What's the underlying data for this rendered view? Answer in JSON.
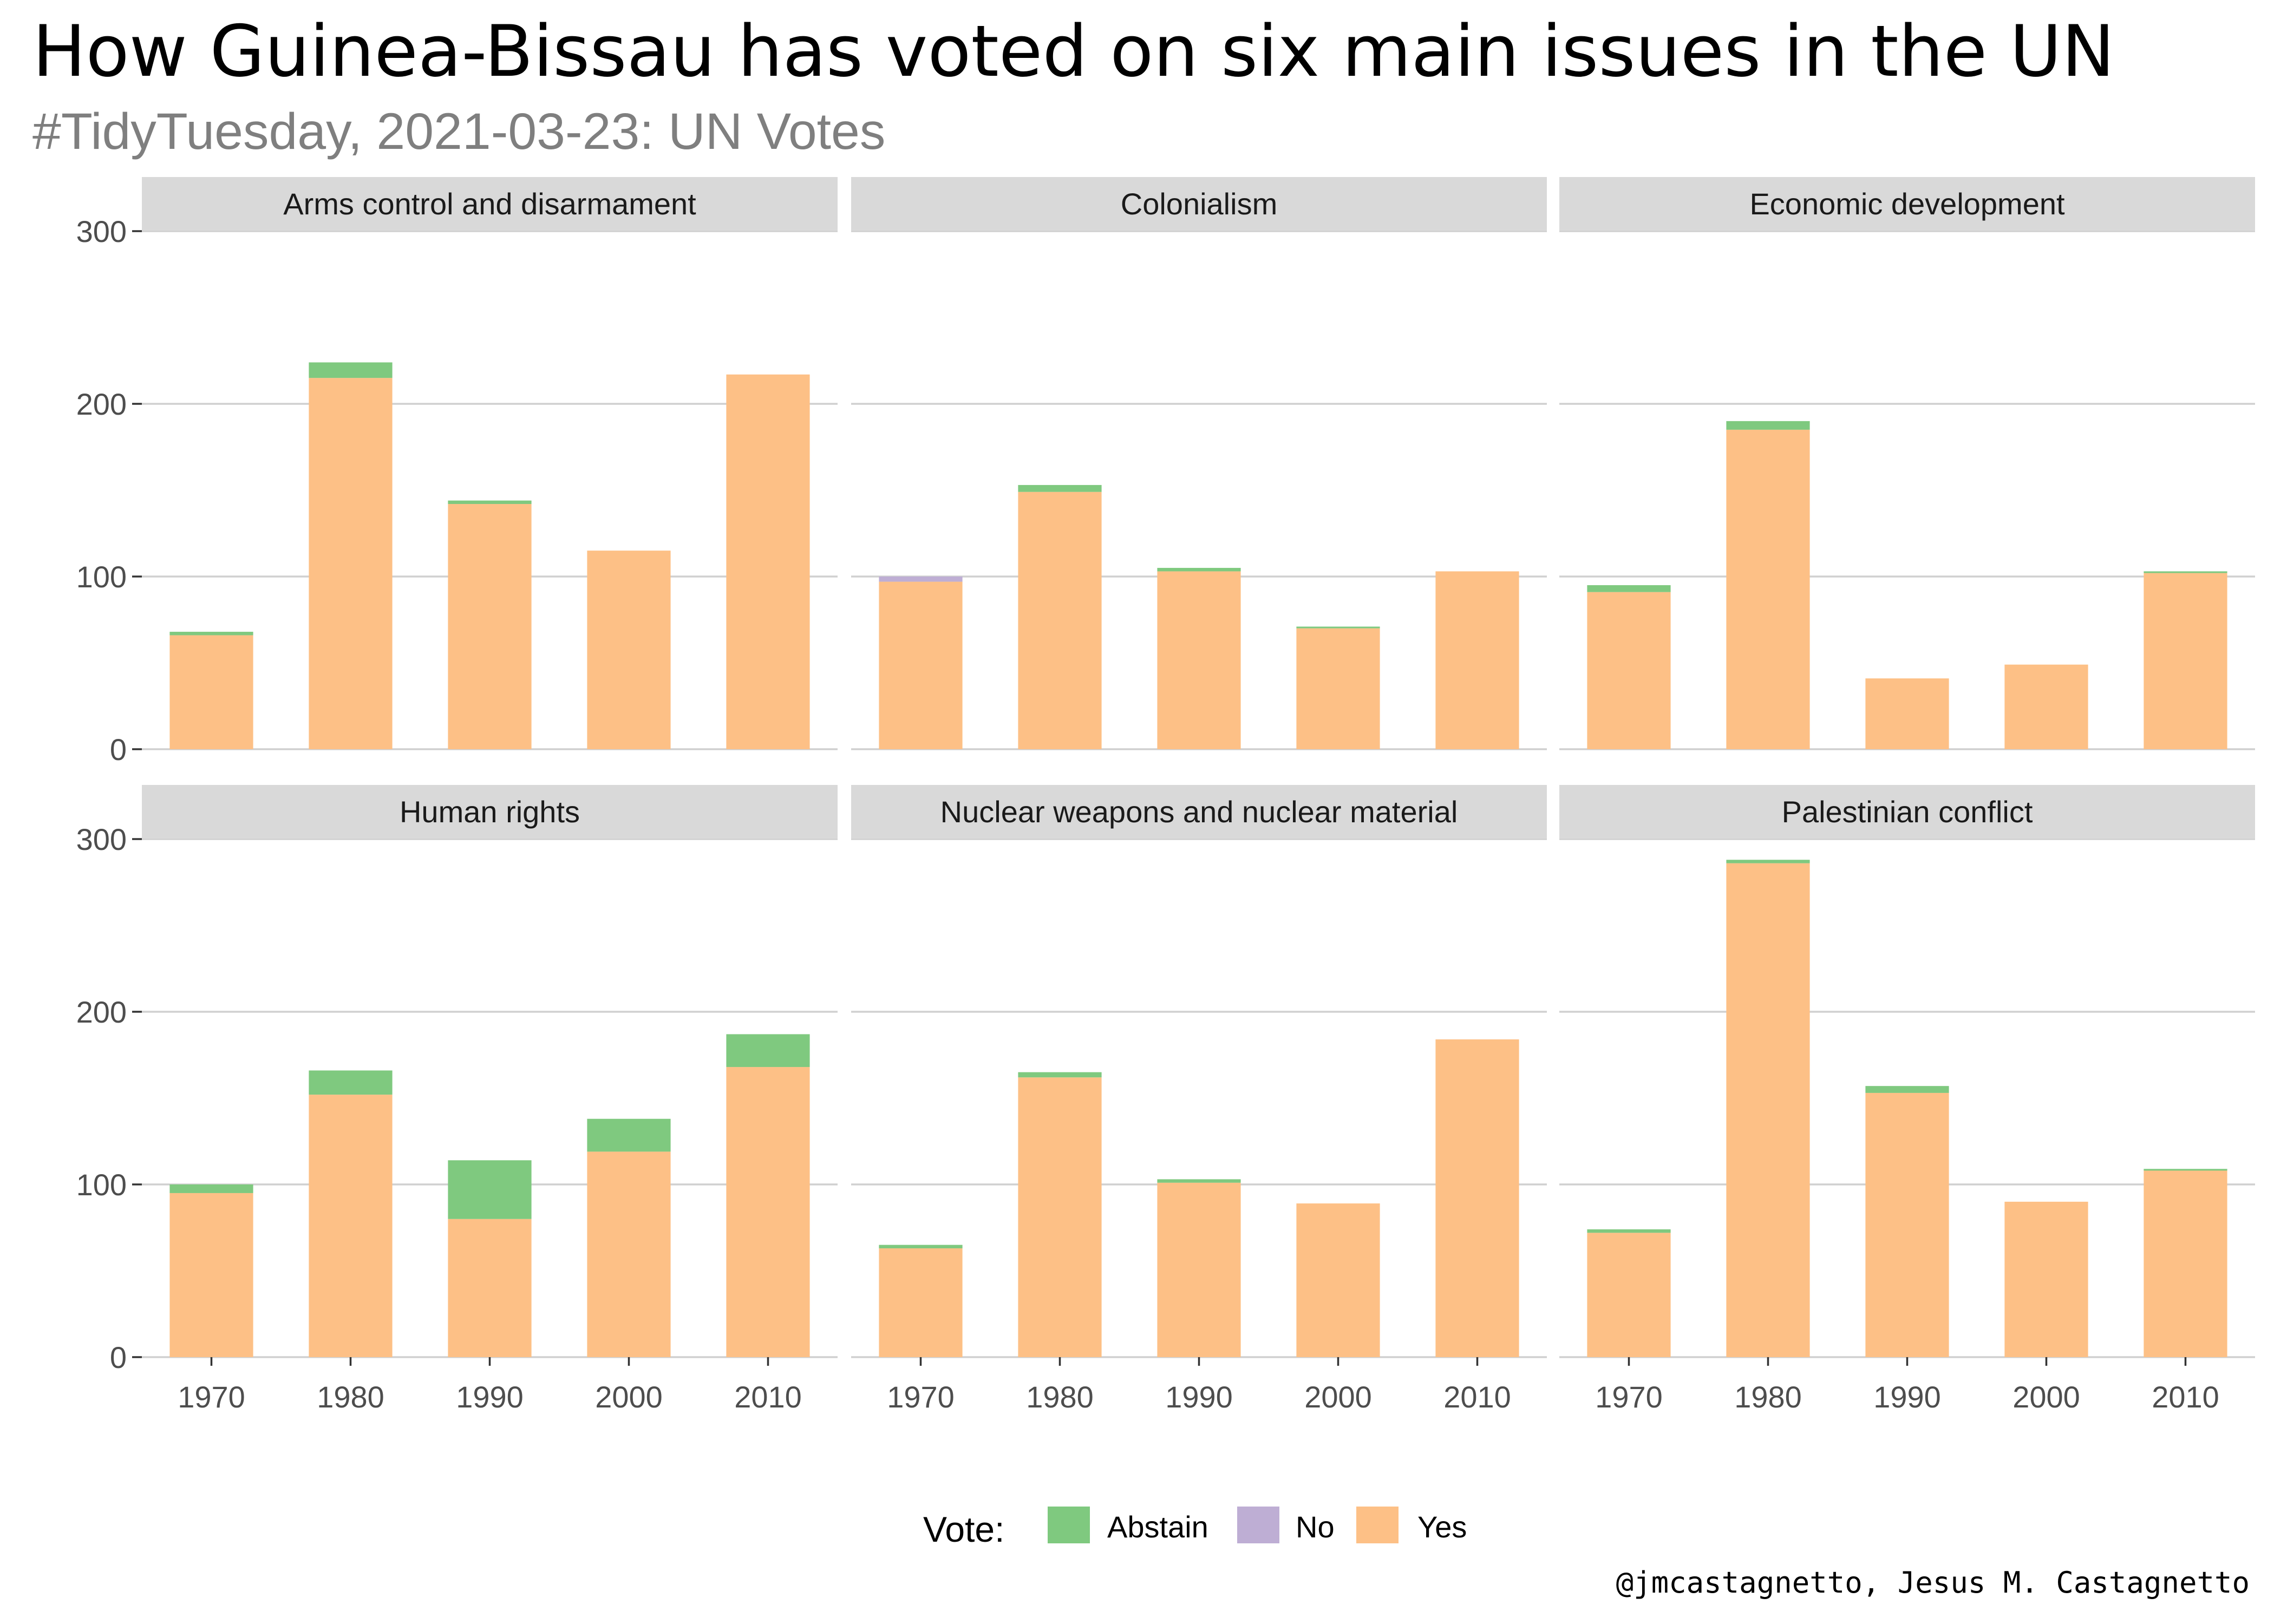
{
  "title": "How Guinea-Bissau has voted on six main issues in the UN",
  "subtitle": "#TidyTuesday, 2021-03-23: UN Votes",
  "caption": "@jmcastagnetto, Jesus M. Castagnetto",
  "legend": {
    "title": "Vote:",
    "items": [
      {
        "label": "Abstain",
        "color": "#7fc97f"
      },
      {
        "label": "No",
        "color": "#beaed4"
      },
      {
        "label": "Yes",
        "color": "#fdc086"
      }
    ]
  },
  "chart_data": {
    "type": "bar",
    "stacked": true,
    "layout": "facets 3x2",
    "categories": [
      "1970",
      "1980",
      "1990",
      "2000",
      "2010"
    ],
    "ylim": [
      0,
      300
    ],
    "yticks": [
      0,
      100,
      200,
      300
    ],
    "grid": true,
    "legend_position": "bottom",
    "xlabel": "",
    "ylabel": "",
    "stack_order": [
      "Yes",
      "No",
      "Abstain"
    ],
    "panels": [
      {
        "title": "Arms control and disarmament",
        "series": [
          {
            "name": "Yes",
            "values": [
              66,
              215,
              142,
              115,
              217
            ]
          },
          {
            "name": "No",
            "values": [
              0,
              0,
              0,
              0,
              0
            ]
          },
          {
            "name": "Abstain",
            "values": [
              2,
              9,
              2,
              0,
              0
            ]
          }
        ]
      },
      {
        "title": "Colonialism",
        "series": [
          {
            "name": "Yes",
            "values": [
              97,
              149,
              103,
              70,
              103
            ]
          },
          {
            "name": "No",
            "values": [
              3,
              0,
              0,
              0,
              0
            ]
          },
          {
            "name": "Abstain",
            "values": [
              0,
              4,
              2,
              1,
              0
            ]
          }
        ]
      },
      {
        "title": "Economic development",
        "series": [
          {
            "name": "Yes",
            "values": [
              91,
              185,
              41,
              49,
              102
            ]
          },
          {
            "name": "No",
            "values": [
              0,
              0,
              0,
              0,
              0
            ]
          },
          {
            "name": "Abstain",
            "values": [
              4,
              5,
              0,
              0,
              1
            ]
          }
        ]
      },
      {
        "title": "Human rights",
        "series": [
          {
            "name": "Yes",
            "values": [
              95,
              152,
              80,
              119,
              168
            ]
          },
          {
            "name": "No",
            "values": [
              0,
              0,
              0,
              0,
              0
            ]
          },
          {
            "name": "Abstain",
            "values": [
              5,
              14,
              34,
              19,
              19
            ]
          }
        ]
      },
      {
        "title": "Nuclear weapons and nuclear material",
        "series": [
          {
            "name": "Yes",
            "values": [
              63,
              162,
              101,
              89,
              184
            ]
          },
          {
            "name": "No",
            "values": [
              0,
              0,
              0,
              0,
              0
            ]
          },
          {
            "name": "Abstain",
            "values": [
              2,
              3,
              2,
              0,
              0
            ]
          }
        ]
      },
      {
        "title": "Palestinian conflict",
        "series": [
          {
            "name": "Yes",
            "values": [
              72,
              286,
              153,
              90,
              108
            ]
          },
          {
            "name": "No",
            "values": [
              0,
              0,
              0,
              0,
              0
            ]
          },
          {
            "name": "Abstain",
            "values": [
              2,
              2,
              4,
              0,
              1
            ]
          }
        ]
      }
    ]
  }
}
